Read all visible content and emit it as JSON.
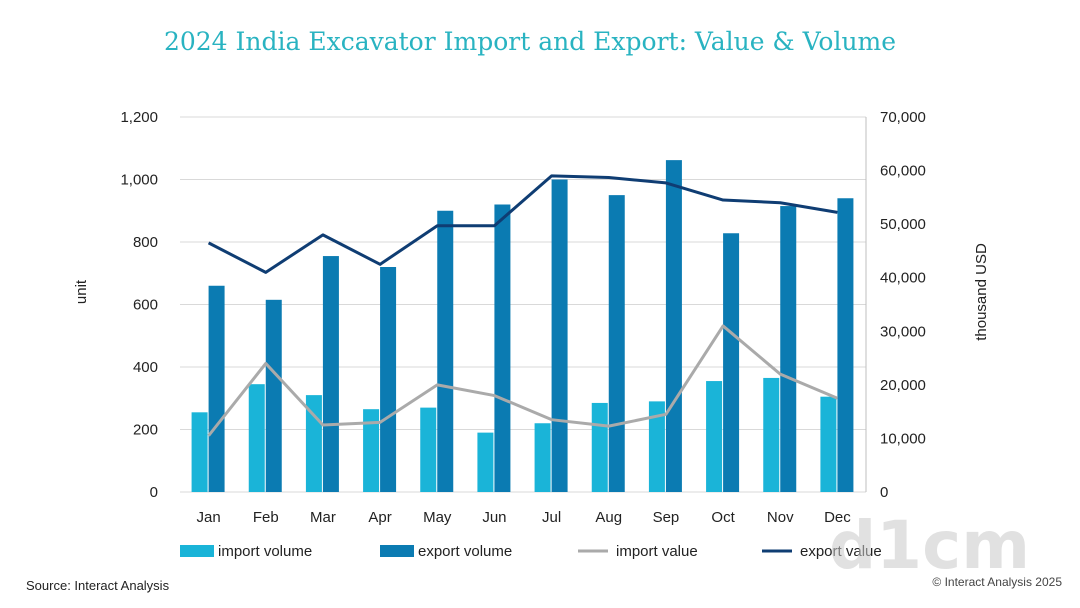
{
  "colors": {
    "import_volume": "#1ab4d8",
    "export_volume": "#0b7bb2",
    "import_value": "#aaaaaa",
    "export_value": "#0f3d73",
    "title": "#29b3c1",
    "grid": "#d9d9d9"
  },
  "chart_data": {
    "type": "bar",
    "title": "2024 India Excavator Import and Export: Value & Volume",
    "categories": [
      "Jan",
      "Feb",
      "Mar",
      "Apr",
      "May",
      "Jun",
      "Jul",
      "Aug",
      "Sep",
      "Oct",
      "Nov",
      "Dec"
    ],
    "ylabel": "unit",
    "y2label": "thousand USD",
    "ylim": [
      0,
      1200
    ],
    "y2lim": [
      0,
      70000
    ],
    "yticks": [
      "0",
      "200",
      "400",
      "600",
      "800",
      "1,000",
      "1,200"
    ],
    "y2ticks": [
      "0",
      "10,000",
      "20,000",
      "30,000",
      "40,000",
      "50,000",
      "60,000",
      "70,000"
    ],
    "grid": true,
    "legend_position": "bottom",
    "series": [
      {
        "name": "import volume",
        "kind": "bar",
        "axis": "left",
        "values": [
          255,
          345,
          310,
          265,
          270,
          190,
          220,
          285,
          290,
          355,
          365,
          305
        ]
      },
      {
        "name": "export volume",
        "kind": "bar",
        "axis": "left",
        "values": [
          660,
          615,
          755,
          720,
          900,
          920,
          1000,
          950,
          1062,
          828,
          915,
          940
        ]
      },
      {
        "name": "import value",
        "kind": "line",
        "axis": "right",
        "values": [
          10500,
          24000,
          12500,
          13000,
          20000,
          18000,
          13500,
          12300,
          14500,
          31000,
          22000,
          17500
        ]
      },
      {
        "name": "export value",
        "kind": "line",
        "axis": "right",
        "values": [
          46500,
          41000,
          48000,
          42500,
          49700,
          49700,
          59000,
          58700,
          57700,
          54500,
          54000,
          52200
        ]
      }
    ]
  },
  "footer": {
    "source": "Source: Interact Analysis",
    "copyright": "© Interact Analysis 2025",
    "watermark": "d1cm"
  }
}
